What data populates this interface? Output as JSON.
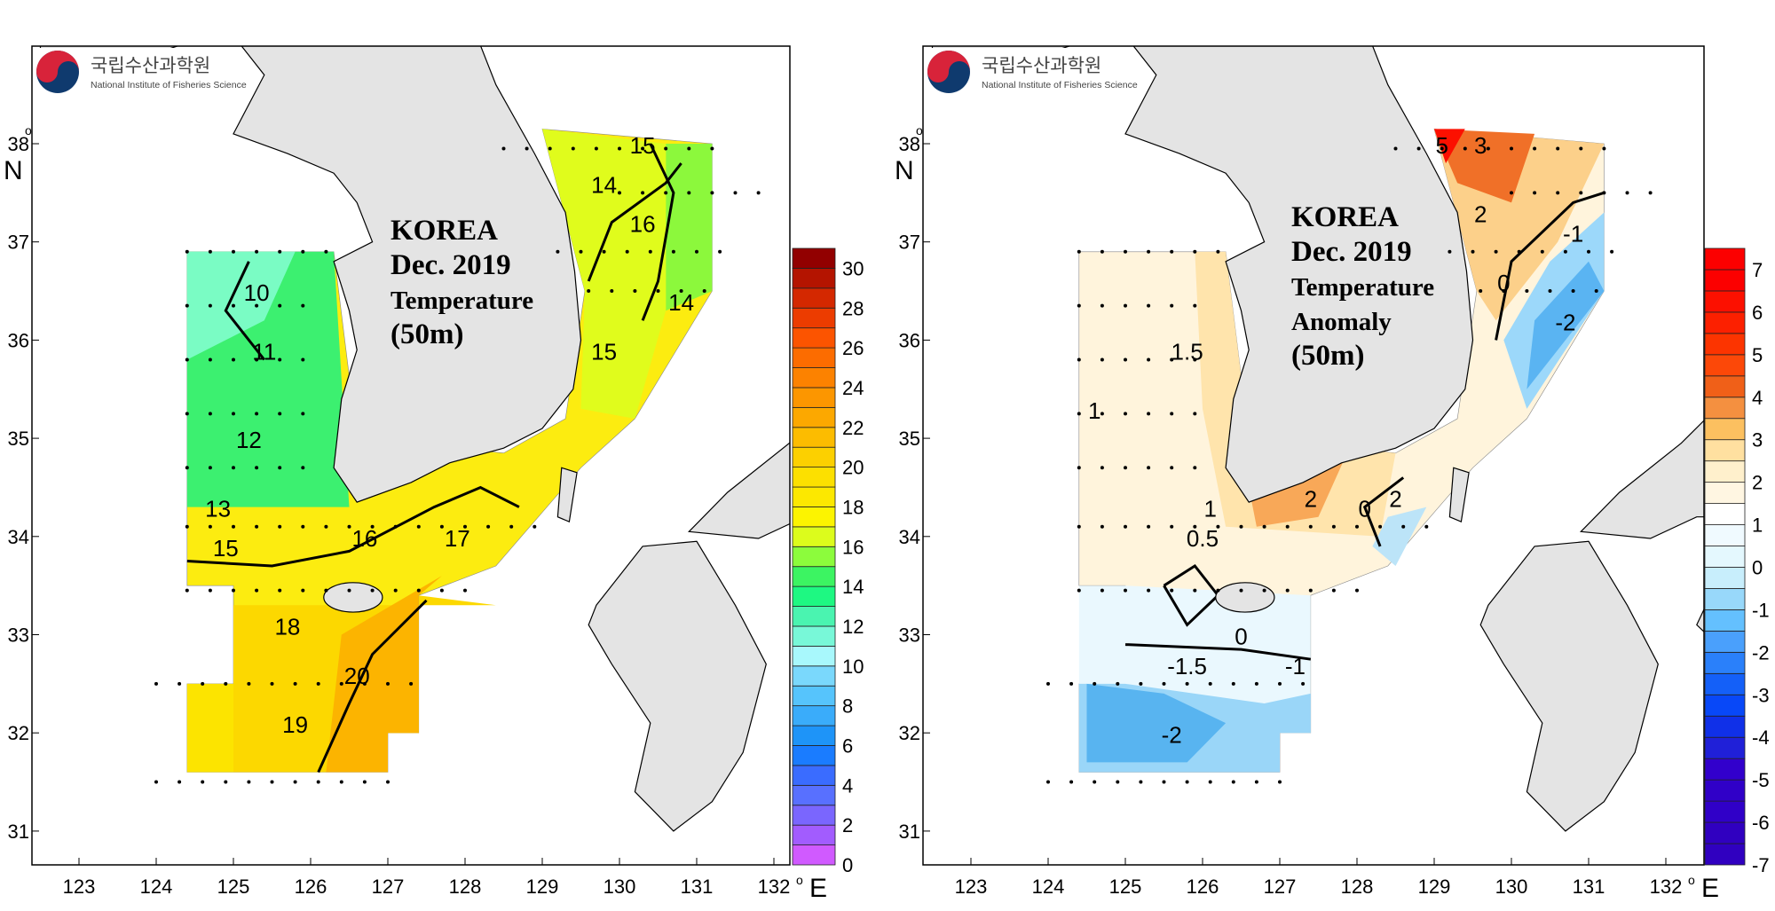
{
  "logo": {
    "korean": "국립수산과학원",
    "english": "National Institute of Fisheries Science"
  },
  "axes": {
    "lon_ticks": [
      "123",
      "124",
      "125",
      "126",
      "127",
      "128",
      "129",
      "130",
      "131",
      "132"
    ],
    "lat_ticks": [
      "38",
      "37",
      "36",
      "35",
      "34",
      "33",
      "32",
      "31"
    ],
    "lon_unit": "E",
    "lat_unit": "N",
    "degree": "o"
  },
  "chart_data": [
    {
      "type": "contour-map",
      "title": [
        "KOREA",
        "Dec. 2019",
        "Temperature",
        "(50m)"
      ],
      "variable": "Temperature",
      "depth": "50m",
      "colorbar": {
        "ticks": [
          "0",
          "2",
          "4",
          "6",
          "8",
          "10",
          "12",
          "14",
          "16",
          "18",
          "20",
          "22",
          "24",
          "26",
          "28",
          "30"
        ],
        "range": [
          0,
          31
        ],
        "step": 1,
        "colors": [
          "#d05aff",
          "#a25cfe",
          "#7a66fe",
          "#5870ff",
          "#3a6cff",
          "#1a7cff",
          "#1e94f8",
          "#3aacfa",
          "#56c4fc",
          "#7ad8fc",
          "#a8f8fc",
          "#78f8d8",
          "#4af4b0",
          "#1ef882",
          "#3cf462",
          "#8cfc3c",
          "#dcfc1c",
          "#fcf400",
          "#fce800",
          "#fce000",
          "#fcd000",
          "#fcbc00",
          "#fca800",
          "#fc9600",
          "#fc8200",
          "#fc6c00",
          "#fc5400",
          "#ec3c00",
          "#d42800",
          "#b41400",
          "#920000"
        ]
      },
      "contour_labels": [
        {
          "text": "10",
          "lon": 125.3,
          "lat": 36.4
        },
        {
          "text": "11",
          "lon": 125.4,
          "lat": 35.8
        },
        {
          "text": "12",
          "lon": 125.2,
          "lat": 34.9
        },
        {
          "text": "13",
          "lon": 124.8,
          "lat": 34.2
        },
        {
          "text": "15",
          "lon": 124.9,
          "lat": 33.8
        },
        {
          "text": "16",
          "lon": 126.7,
          "lat": 33.9
        },
        {
          "text": "17",
          "lon": 127.9,
          "lat": 33.9
        },
        {
          "text": "18",
          "lon": 125.7,
          "lat": 33.0
        },
        {
          "text": "19",
          "lon": 125.8,
          "lat": 32.0
        },
        {
          "text": "20",
          "lon": 126.6,
          "lat": 32.5
        },
        {
          "text": "14",
          "lon": 129.8,
          "lat": 37.5
        },
        {
          "text": "15",
          "lon": 130.3,
          "lat": 37.9
        },
        {
          "text": "16",
          "lon": 130.3,
          "lat": 37.1
        },
        {
          "text": "14",
          "lon": 130.8,
          "lat": 36.3
        },
        {
          "text": "15",
          "lon": 129.8,
          "lat": 35.8
        }
      ]
    },
    {
      "type": "contour-map",
      "title": [
        "KOREA",
        "Dec. 2019",
        "Temperature",
        "Anomaly",
        "(50m)"
      ],
      "variable": "Temperature Anomaly",
      "depth": "50m",
      "colorbar": {
        "ticks": [
          "-7",
          "-6",
          "-5",
          "-4",
          "-3",
          "-2",
          "-1",
          "0",
          "1",
          "2",
          "3",
          "4",
          "5",
          "6",
          "7"
        ],
        "range": [
          -7,
          7.5
        ],
        "step": 0.5,
        "colors": [
          "#3000c0",
          "#3000c0",
          "#3000c8",
          "#3000c8",
          "#3200cc",
          "#2020d8",
          "#1030e8",
          "#0848f8",
          "#1460f8",
          "#2a80fa",
          "#4aa0fc",
          "#64c0fe",
          "#98d8fa",
          "#c8eefc",
          "#e4f8fe",
          "#f0faff",
          "#ffffff",
          "#fff6e2",
          "#fff0cc",
          "#ffe0a0",
          "#fcc060",
          "#f49040",
          "#f06018",
          "#fc4808",
          "#fc3400",
          "#fc2000",
          "#fc1000",
          "#fc0000",
          "#fc0000"
        ]
      },
      "contour_labels": [
        {
          "text": "5",
          "lon": 129.1,
          "lat": 37.9
        },
        {
          "text": "3",
          "lon": 129.6,
          "lat": 37.9
        },
        {
          "text": "2",
          "lon": 129.6,
          "lat": 37.2
        },
        {
          "text": "-1",
          "lon": 130.8,
          "lat": 37.0
        },
        {
          "text": "0",
          "lon": 129.9,
          "lat": 36.5
        },
        {
          "text": "-2",
          "lon": 130.7,
          "lat": 36.1
        },
        {
          "text": "1.5",
          "lon": 125.8,
          "lat": 35.8
        },
        {
          "text": "1",
          "lon": 124.6,
          "lat": 35.2
        },
        {
          "text": "1",
          "lon": 126.1,
          "lat": 34.2
        },
        {
          "text": "0.5",
          "lon": 126.0,
          "lat": 33.9
        },
        {
          "text": "2",
          "lon": 127.4,
          "lat": 34.3
        },
        {
          "text": "0",
          "lon": 128.1,
          "lat": 34.2
        },
        {
          "text": "2",
          "lon": 128.5,
          "lat": 34.3
        },
        {
          "text": "0",
          "lon": 126.5,
          "lat": 32.9
        },
        {
          "text": "-1",
          "lon": 127.2,
          "lat": 32.6
        },
        {
          "text": "-1.5",
          "lon": 125.8,
          "lat": 32.6
        },
        {
          "text": "-2",
          "lon": 125.6,
          "lat": 31.9
        }
      ]
    }
  ]
}
